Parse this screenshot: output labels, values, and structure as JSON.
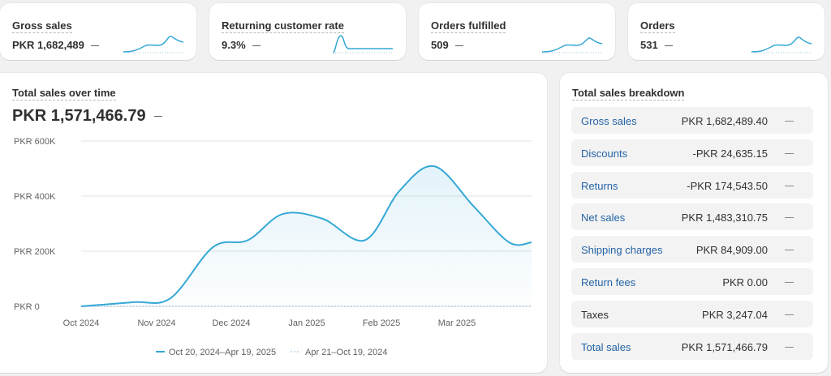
{
  "metrics": [
    {
      "label": "Gross sales",
      "value": "PKR 1,682,489",
      "change": "—"
    },
    {
      "label": "Returning customer rate",
      "value": "9.3%",
      "change": "—"
    },
    {
      "label": "Orders fulfilled",
      "value": "509",
      "change": "—"
    },
    {
      "label": "Orders",
      "value": "531",
      "change": "—"
    }
  ],
  "main": {
    "title": "Total sales over time",
    "value": "PKR 1,571,466.79",
    "change": "—"
  },
  "chart_data": {
    "type": "line",
    "title": "Total sales over time",
    "x_labels": [
      "Oct 2024",
      "Nov 2024",
      "Dec 2024",
      "Jan 2025",
      "Feb 2025",
      "Mar 2025"
    ],
    "y_ticks": [
      "PKR 0",
      "PKR 200K",
      "PKR 400K",
      "PKR 600K"
    ],
    "ylim": [
      0,
      600000
    ],
    "grid": true,
    "legend_position": "bottom",
    "series": [
      {
        "name": "Oct 20, 2024–Apr 19, 2025",
        "style": "solid",
        "color": "#35a8d6",
        "points": [
          {
            "x": "2024-10-20",
            "y": 0
          },
          {
            "x": "2024-11-10",
            "y": 15000
          },
          {
            "x": "2024-11-25",
            "y": 30000
          },
          {
            "x": "2024-12-12",
            "y": 215000
          },
          {
            "x": "2024-12-26",
            "y": 240000
          },
          {
            "x": "2025-01-09",
            "y": 335000
          },
          {
            "x": "2025-01-25",
            "y": 318000
          },
          {
            "x": "2025-02-11",
            "y": 240000
          },
          {
            "x": "2025-02-25",
            "y": 420000
          },
          {
            "x": "2025-03-11",
            "y": 508000
          },
          {
            "x": "2025-03-27",
            "y": 360000
          },
          {
            "x": "2025-04-10",
            "y": 232000
          }
        ]
      },
      {
        "name": "Apr 21–Oct 19, 2024",
        "style": "dotted",
        "color": "#9fc9e3",
        "points": [
          {
            "x": "2024-10-20",
            "y": 0
          },
          {
            "x": "2025-04-10",
            "y": 0
          }
        ]
      }
    ]
  },
  "breakdown": {
    "title": "Total sales breakdown",
    "rows": [
      {
        "label": "Gross sales",
        "value": "PKR 1,682,489.40",
        "change": "—",
        "link": true
      },
      {
        "label": "Discounts",
        "value": "-PKR 24,635.15",
        "change": "—",
        "link": true
      },
      {
        "label": "Returns",
        "value": "-PKR 174,543.50",
        "change": "—",
        "link": true
      },
      {
        "label": "Net sales",
        "value": "PKR 1,483,310.75",
        "change": "—",
        "link": true
      },
      {
        "label": "Shipping charges",
        "value": "PKR 84,909.00",
        "change": "—",
        "link": true
      },
      {
        "label": "Return fees",
        "value": "PKR 0.00",
        "change": "—",
        "link": true
      },
      {
        "label": "Taxes",
        "value": "PKR 3,247.04",
        "change": "—",
        "link": false
      },
      {
        "label": "Total sales",
        "value": "PKR 1,571,466.79",
        "change": "—",
        "link": true
      }
    ]
  }
}
